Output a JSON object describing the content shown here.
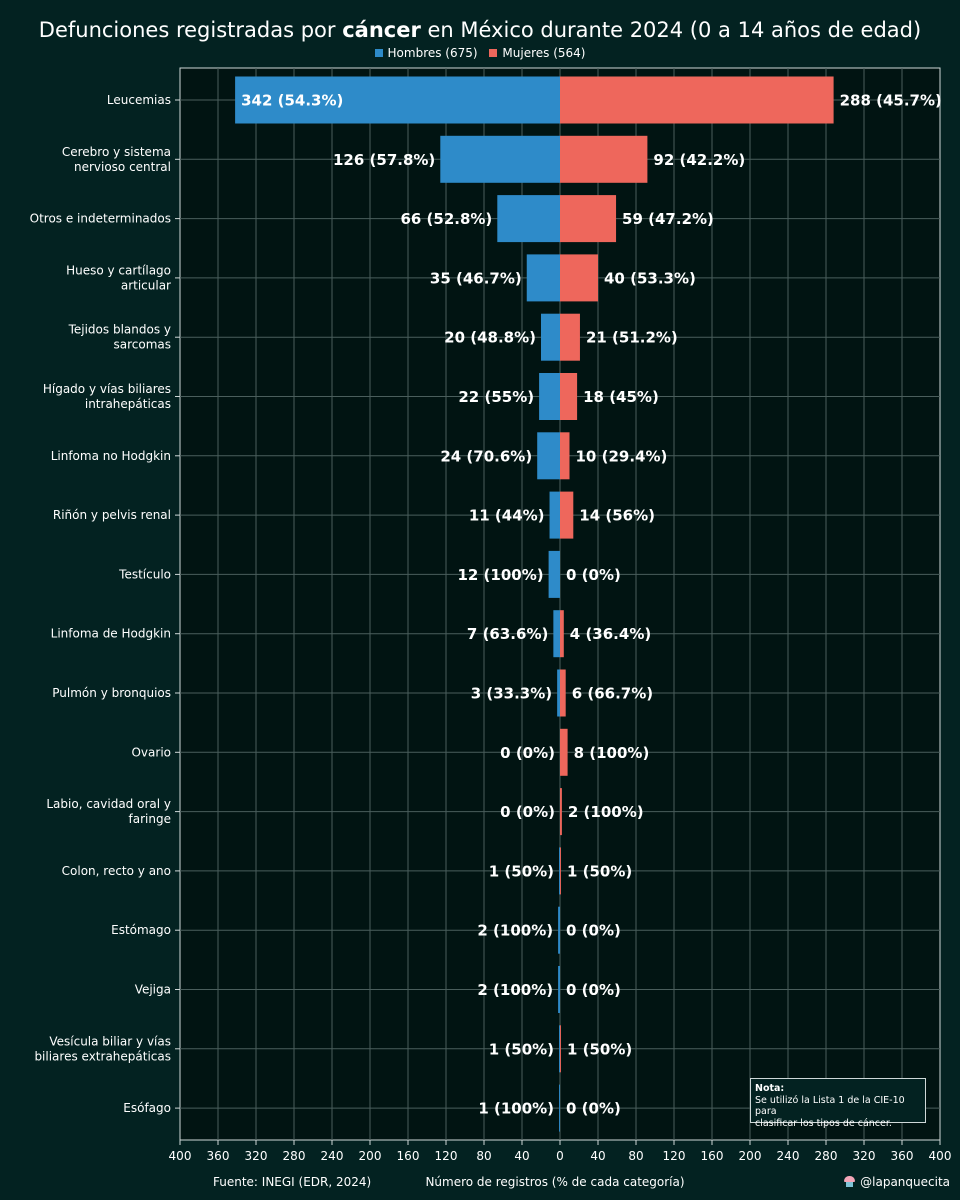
{
  "title": {
    "prefix": "Defunciones registradas por ",
    "bold": "cáncer",
    "suffix": " en México durante 2024 (0 a 14 años de edad)"
  },
  "legend": {
    "men_label": "Hombres (675)",
    "women_label": "Mujeres (564)"
  },
  "colors": {
    "men": "#2E8BC9",
    "women": "#EE675C",
    "background": "#032221",
    "plot_background": "#011412",
    "grid": "#4A5E5C"
  },
  "chart_data": {
    "type": "bar",
    "orientation": "horizontal-diverging",
    "title": "Defunciones registradas por cáncer en México durante 2024 (0 a 14 años de edad)",
    "xlabel": "Número de registros (% de cada categoría)",
    "ylabel": "",
    "xlim": [
      -400,
      400
    ],
    "xticks": [
      -400,
      -360,
      -320,
      -280,
      -240,
      -200,
      -160,
      -120,
      -80,
      -40,
      0,
      40,
      80,
      120,
      160,
      200,
      240,
      280,
      320,
      360,
      400
    ],
    "xtick_labels": [
      "400",
      "360",
      "320",
      "280",
      "240",
      "200",
      "160",
      "120",
      "80",
      "40",
      "0",
      "40",
      "80",
      "120",
      "160",
      "200",
      "240",
      "280",
      "320",
      "360",
      "400"
    ],
    "categories": [
      [
        "Leucemias"
      ],
      [
        "Cerebro y sistema",
        "nervioso central"
      ],
      [
        "Otros e indeterminados"
      ],
      [
        "Hueso y cartílago",
        "articular"
      ],
      [
        "Tejidos blandos y",
        "sarcomas"
      ],
      [
        "Hígado y vías biliares",
        "intrahepáticas"
      ],
      [
        "Linfoma no Hodgkin"
      ],
      [
        "Riñón y pelvis renal"
      ],
      [
        "Testículo"
      ],
      [
        "Linfoma de Hodgkin"
      ],
      [
        "Pulmón y bronquios"
      ],
      [
        "Ovario"
      ],
      [
        "Labio, cavidad oral y",
        "faringe"
      ],
      [
        "Colon, recto y ano"
      ],
      [
        "Estómago"
      ],
      [
        "Vejiga"
      ],
      [
        "Vesícula biliar y vías",
        "biliares extrahepáticas"
      ],
      [
        "Esófago"
      ]
    ],
    "series": [
      {
        "name": "Hombres (675)",
        "values": [
          342,
          126,
          66,
          35,
          20,
          22,
          24,
          11,
          12,
          7,
          3,
          0,
          0,
          1,
          2,
          2,
          1,
          1
        ],
        "labels": [
          "342 (54.3%)",
          "126 (57.8%)",
          "66 (52.8%)",
          "35 (46.7%)",
          "20 (48.8%)",
          "22 (55%)",
          "24 (70.6%)",
          "11 (44%)",
          "12 (100%)",
          "7 (63.6%)",
          "3 (33.3%)",
          "0 (0%)",
          "0 (0%)",
          "1 (50%)",
          "2 (100%)",
          "2 (100%)",
          "1 (50%)",
          "1 (100%)"
        ]
      },
      {
        "name": "Mujeres (564)",
        "values": [
          288,
          92,
          59,
          40,
          21,
          18,
          10,
          14,
          0,
          4,
          6,
          8,
          2,
          1,
          0,
          0,
          1,
          0
        ],
        "labels": [
          "288 (45.7%)",
          "92 (42.2%)",
          "59 (47.2%)",
          "40 (53.3%)",
          "21 (51.2%)",
          "18 (45%)",
          "10 (29.4%)",
          "14 (56%)",
          "0 (0%)",
          "4 (36.4%)",
          "6 (66.7%)",
          "8 (100%)",
          "2 (100%)",
          "1 (50%)",
          "0 (0%)",
          "0 (0%)",
          "1 (50%)",
          "0 (0%)"
        ]
      }
    ],
    "grid": true,
    "legend_position": "top-center"
  },
  "footer": {
    "source": "Fuente: INEGI (EDR, 2024)",
    "xlabel": "Número de registros (% de cada categoría)",
    "handle": "@lapanquecita"
  },
  "note": {
    "heading": "Nota:",
    "line1": "Se utilizó la Lista 1 de la CIE-10 para",
    "line2": "clasificar los tipos de cáncer."
  }
}
